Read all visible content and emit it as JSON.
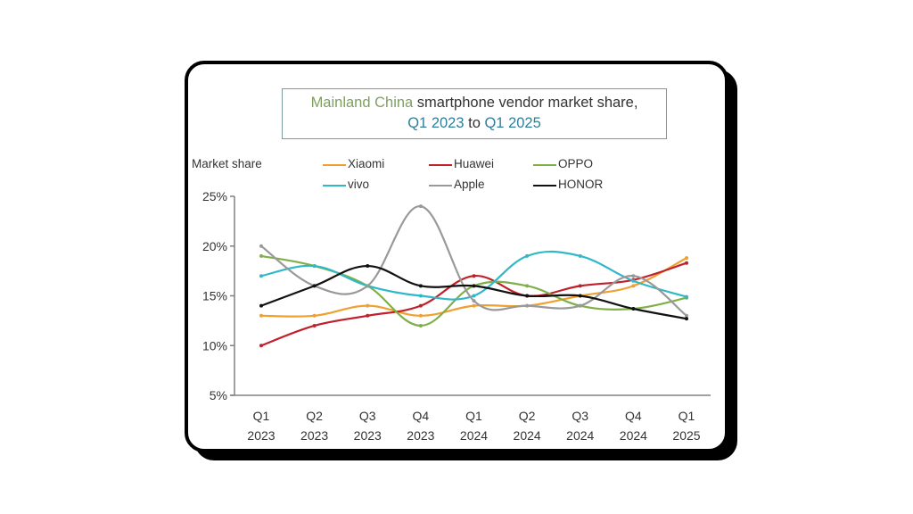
{
  "chart_data": {
    "type": "line",
    "title_parts": [
      {
        "text": "Mainland China",
        "color": "#7f9f5f"
      },
      {
        "text": " smartphone vendor market share,",
        "color": "#333333"
      }
    ],
    "subtitle_parts": [
      {
        "text": "Q1 2023",
        "color": "#2e7f99"
      },
      {
        "text": " to ",
        "color": "#333333"
      },
      {
        "text": "Q1 2025",
        "color": "#2e7f99"
      }
    ],
    "title": "Mainland China smartphone vendor market share, Q1 2023 to Q1 2025",
    "ylabel": "Market share",
    "xlabel": "",
    "ylim": [
      5,
      25
    ],
    "yticks": [
      5,
      10,
      15,
      20,
      25
    ],
    "ytick_labels": [
      "5%",
      "10%",
      "15%",
      "20%",
      "25%"
    ],
    "grid": false,
    "legend_position": "top",
    "categories": [
      [
        "Q1",
        "2023"
      ],
      [
        "Q2",
        "2023"
      ],
      [
        "Q3",
        "2023"
      ],
      [
        "Q4",
        "2023"
      ],
      [
        "Q1",
        "2024"
      ],
      [
        "Q2",
        "2024"
      ],
      [
        "Q3",
        "2024"
      ],
      [
        "Q4",
        "2024"
      ],
      [
        "Q1",
        "2025"
      ]
    ],
    "series": [
      {
        "name": "Xiaomi",
        "color": "#f0a030",
        "values": [
          13,
          13,
          14,
          13,
          14,
          14,
          15,
          16,
          18.8
        ]
      },
      {
        "name": "Huawei",
        "color": "#c0202a",
        "values": [
          10,
          12,
          13,
          14,
          17,
          15,
          16,
          16.6,
          18.3
        ]
      },
      {
        "name": "OPPO",
        "color": "#7fb048",
        "values": [
          19,
          18,
          16,
          12,
          16,
          16,
          14,
          13.7,
          14.8
        ]
      },
      {
        "name": "vivo",
        "color": "#30b8c8",
        "values": [
          17,
          18,
          16,
          15,
          15,
          19,
          19,
          16.5,
          14.9
        ]
      },
      {
        "name": "Apple",
        "color": "#999999",
        "values": [
          20,
          16,
          16,
          24,
          14.5,
          14,
          14,
          17,
          13
        ]
      },
      {
        "name": "HONOR",
        "color": "#111111",
        "values": [
          14,
          16,
          18,
          16,
          16,
          15,
          15,
          13.7,
          12.7
        ]
      }
    ]
  }
}
